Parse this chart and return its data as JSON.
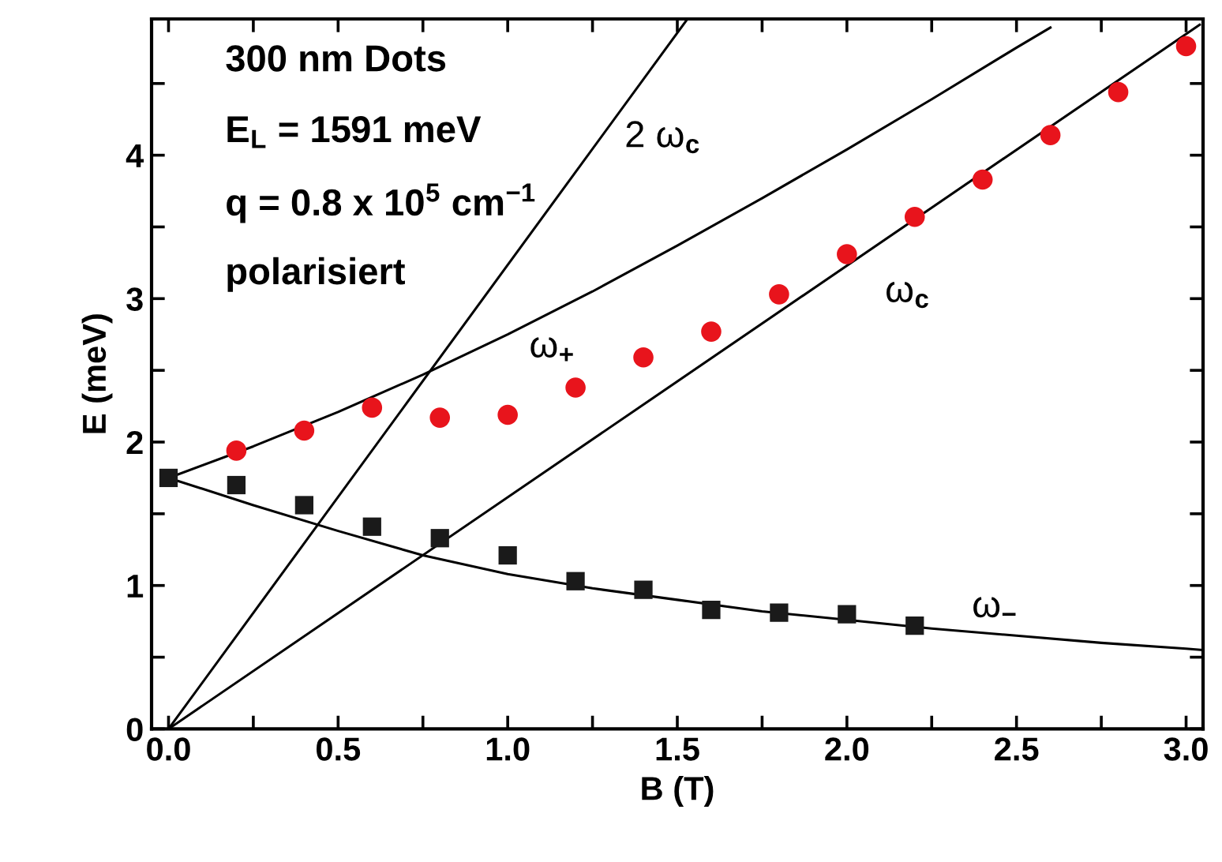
{
  "chart_data": {
    "type": "scatter",
    "xlabel": "B (T)",
    "ylabel": "E (meV)",
    "xlim": [
      -0.05,
      3.05
    ],
    "ylim": [
      0,
      4.95
    ],
    "xticks": [
      {
        "value": 0,
        "label": "0.0"
      },
      {
        "value": 0.25,
        "label": null
      },
      0.5,
      {
        "value": 0.75,
        "label": null
      },
      {
        "value": 1,
        "label": "1.0"
      },
      {
        "value": 1.25,
        "label": null
      },
      1.5,
      {
        "value": 1.75,
        "label": null
      },
      {
        "value": 2,
        "label": "2.0"
      },
      {
        "value": 2.25,
        "label": null
      },
      2.5,
      {
        "value": 2.75,
        "label": null
      },
      {
        "value": 3,
        "label": "3.0"
      }
    ],
    "yticks": [
      0,
      {
        "value": 0.5,
        "label": null
      },
      1,
      {
        "value": 1.5,
        "label": null
      },
      2,
      {
        "value": 2.5,
        "label": null
      },
      3,
      {
        "value": 3.5,
        "label": null
      },
      4,
      {
        "value": 4.5,
        "label": null
      }
    ],
    "grid": false,
    "legend": false,
    "series": [
      {
        "type": "line",
        "name": "ω$_{+}$",
        "color": "#000000",
        "line_style": "solid",
        "marker": "none",
        "x": [
          0,
          0.25,
          0.5,
          0.75,
          1.0,
          1.25,
          1.5,
          1.75,
          2.0,
          2.25,
          2.5,
          2.6
        ],
        "values": [
          1.75,
          1.97,
          2.21,
          2.47,
          2.75,
          3.05,
          3.37,
          3.7,
          4.04,
          4.39,
          4.75,
          4.89
        ]
      },
      {
        "type": "line",
        "name": "ω$_{−}$",
        "color": "#000000",
        "line_style": "solid",
        "marker": "none",
        "x": [
          0,
          0.25,
          0.5,
          0.75,
          1.0,
          1.25,
          1.5,
          1.75,
          2.0,
          2.25,
          2.5,
          2.75,
          3.0,
          3.05
        ],
        "values": [
          1.75,
          1.56,
          1.38,
          1.21,
          1.08,
          0.98,
          0.9,
          0.82,
          0.76,
          0.7,
          0.65,
          0.6,
          0.56,
          0.55
        ]
      },
      {
        "type": "line",
        "name": "ω$_{c}$",
        "color": "#000000",
        "line_style": "solid",
        "marker": "none",
        "x": [
          0,
          3.04
        ],
        "values": [
          0,
          4.91
        ]
      },
      {
        "type": "line",
        "name": "2 ω$_{c}$",
        "color": "#000000",
        "line_style": "solid",
        "marker": "none",
        "x": [
          0,
          1.53
        ],
        "values": [
          0,
          4.95
        ]
      },
      {
        "color": "#e8141c",
        "marker": "circle",
        "x": [
          0.2,
          0.4,
          0.6,
          0.8,
          1.0,
          1.2,
          1.4,
          1.6,
          1.8,
          2.0,
          2.2,
          2.4,
          2.6,
          2.8,
          3.0
        ],
        "values": [
          1.94,
          2.08,
          2.24,
          2.17,
          2.19,
          2.38,
          2.59,
          2.77,
          3.03,
          3.31,
          3.57,
          3.83,
          4.14,
          4.44,
          4.76
        ]
      },
      {
        "color": "#1a1a1a",
        "marker": "square",
        "x": [
          0,
          0.2,
          0.4,
          0.6,
          0.8,
          1.0,
          1.2,
          1.4,
          1.6,
          1.8,
          2.0,
          2.2
        ],
        "values": [
          1.75,
          1.7,
          1.56,
          1.41,
          1.33,
          1.21,
          1.03,
          0.97,
          0.83,
          0.81,
          0.8,
          0.72
        ]
      }
    ],
    "annotations": [
      "300 nm Dots",
      "E$_{L}$ = 1591 meV",
      "q = 0.8 x 10$^{5}$ cm$^{−1}$",
      "polarisiert"
    ]
  }
}
